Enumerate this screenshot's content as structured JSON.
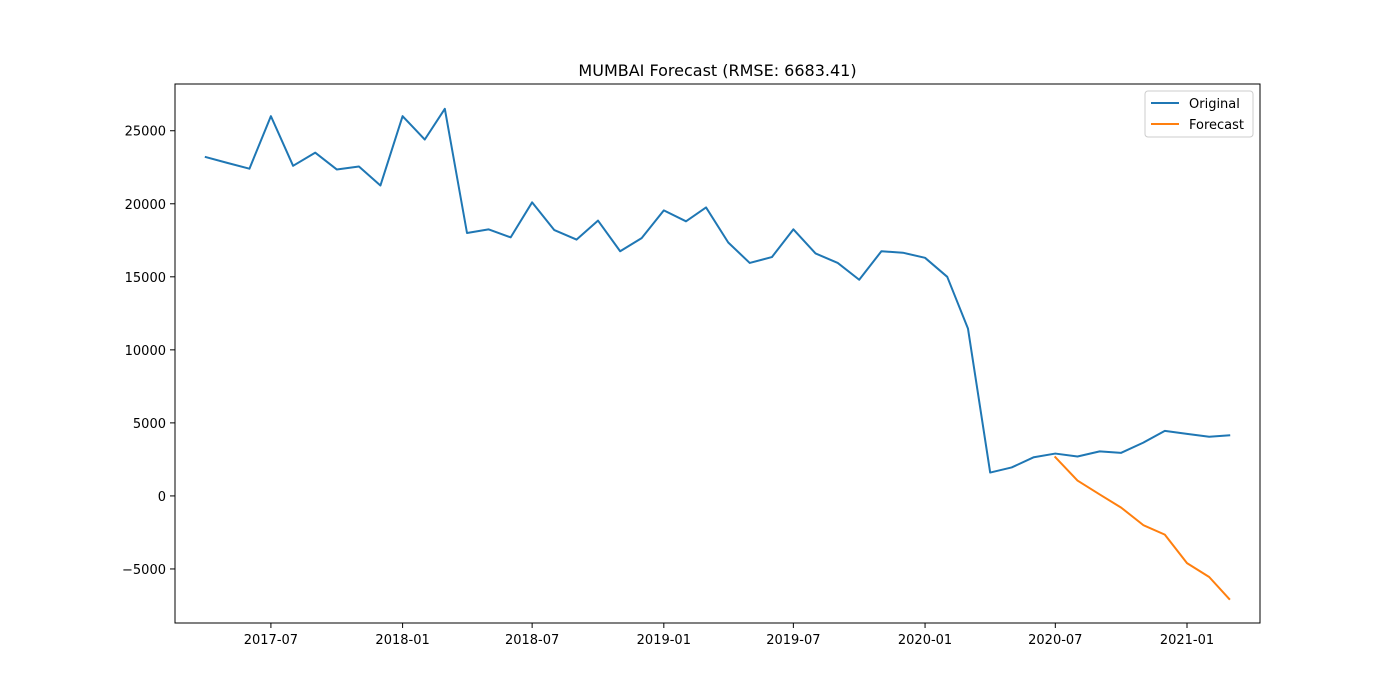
{
  "chart_data": {
    "type": "line",
    "title": "MUMBAI Forecast (RMSE: 6683.41)",
    "xlabel": "",
    "ylabel": "",
    "xlim": [
      "2017-02-17",
      "2021-04-13"
    ],
    "ylim": [
      -8700,
      28200
    ],
    "x_ticks": [
      "2017-07",
      "2018-01",
      "2018-07",
      "2019-01",
      "2019-07",
      "2020-01",
      "2020-07",
      "2021-01"
    ],
    "y_ticks": [
      -5000,
      0,
      5000,
      10000,
      15000,
      20000,
      25000
    ],
    "y_tick_labels": [
      "−5000",
      "0",
      "5000",
      "10000",
      "15000",
      "20000",
      "25000"
    ],
    "grid": false,
    "legend_position": "top-right",
    "series": [
      {
        "name": "Original",
        "color": "#1f77b4",
        "points": [
          [
            "2017-04-01",
            23200
          ],
          [
            "2017-05-01",
            22800
          ],
          [
            "2017-06-01",
            22400
          ],
          [
            "2017-07-01",
            26000
          ],
          [
            "2017-08-01",
            22600
          ],
          [
            "2017-09-01",
            23500
          ],
          [
            "2017-10-01",
            22350
          ],
          [
            "2017-11-01",
            22550
          ],
          [
            "2017-12-01",
            21250
          ],
          [
            "2018-01-01",
            26000
          ],
          [
            "2018-02-01",
            24400
          ],
          [
            "2018-03-01",
            26500
          ],
          [
            "2018-04-01",
            18000
          ],
          [
            "2018-05-01",
            18250
          ],
          [
            "2018-06-01",
            17700
          ],
          [
            "2018-07-01",
            20100
          ],
          [
            "2018-08-01",
            18200
          ],
          [
            "2018-09-01",
            17550
          ],
          [
            "2018-10-01",
            18850
          ],
          [
            "2018-11-01",
            16750
          ],
          [
            "2018-12-01",
            17650
          ],
          [
            "2019-01-01",
            19550
          ],
          [
            "2019-02-01",
            18800
          ],
          [
            "2019-03-01",
            19750
          ],
          [
            "2019-04-01",
            17350
          ],
          [
            "2019-05-01",
            15950
          ],
          [
            "2019-06-01",
            16350
          ],
          [
            "2019-07-01",
            18250
          ],
          [
            "2019-08-01",
            16600
          ],
          [
            "2019-09-01",
            15950
          ],
          [
            "2019-10-01",
            14800
          ],
          [
            "2019-11-01",
            16750
          ],
          [
            "2019-12-01",
            16650
          ],
          [
            "2020-01-01",
            16300
          ],
          [
            "2020-02-01",
            15000
          ],
          [
            "2020-03-01",
            11450
          ],
          [
            "2020-04-01",
            1600
          ],
          [
            "2020-05-01",
            1950
          ],
          [
            "2020-06-01",
            2650
          ],
          [
            "2020-07-01",
            2900
          ],
          [
            "2020-08-01",
            2700
          ],
          [
            "2020-09-01",
            3050
          ],
          [
            "2020-10-01",
            2950
          ],
          [
            "2020-11-01",
            3650
          ],
          [
            "2020-12-01",
            4450
          ],
          [
            "2021-01-01",
            4250
          ],
          [
            "2021-02-01",
            4050
          ],
          [
            "2021-03-01",
            4150
          ]
        ]
      },
      {
        "name": "Forecast",
        "color": "#ff7f0e",
        "points": [
          [
            "2020-07-01",
            2650
          ],
          [
            "2020-08-01",
            1050
          ],
          [
            "2020-09-01",
            100
          ],
          [
            "2020-10-01",
            -800
          ],
          [
            "2020-11-01",
            -2000
          ],
          [
            "2020-12-01",
            -2650
          ],
          [
            "2021-01-01",
            -4600
          ],
          [
            "2021-02-01",
            -5550
          ],
          [
            "2021-03-01",
            -7050
          ]
        ]
      }
    ]
  }
}
